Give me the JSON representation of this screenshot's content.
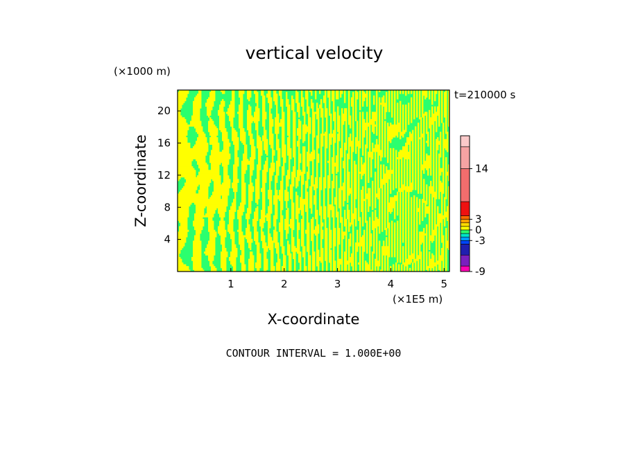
{
  "chart_data": {
    "type": "heatmap",
    "title": "vertical velocity",
    "xlabel": "X-coordinate",
    "ylabel": "Z-coordinate",
    "x_unit": "(×1E5 m)",
    "y_unit": "(×1000 m)",
    "time_label": "t=210000 s",
    "footer": "CONTOUR INTERVAL = 1.000E+00",
    "xlim": [
      0,
      5.1
    ],
    "ylim": [
      0,
      22.6
    ],
    "x_ticks": [
      "1",
      "2",
      "3",
      "4",
      "5"
    ],
    "y_ticks": [
      "4",
      "8",
      "12",
      "16",
      "20"
    ],
    "x_tick_values": [
      1,
      2,
      3,
      4,
      5
    ],
    "y_tick_values": [
      4,
      8,
      12,
      16,
      20
    ],
    "grid": false,
    "field_description": "mostly yellow (0 to 1) and green (-1 to 0) vertical streaks",
    "colorbar": {
      "levels": [
        {
          "lo": -9,
          "hi": -8,
          "color": "#ff00b4"
        },
        {
          "lo": -8,
          "hi": -6,
          "color": "#7a1fbf"
        },
        {
          "lo": -6,
          "hi": -4,
          "color": "#1f1fb0"
        },
        {
          "lo": -4,
          "hi": -3,
          "color": "#0046ff"
        },
        {
          "lo": -3,
          "hi": -2,
          "color": "#00a0ff"
        },
        {
          "lo": -2,
          "hi": -1,
          "color": "#00e6c8"
        },
        {
          "lo": -1,
          "hi": 0,
          "color": "#2bff6e"
        },
        {
          "lo": 0,
          "hi": 1,
          "color": "#ffff00"
        },
        {
          "lo": 1,
          "hi": 2,
          "color": "#ffdc00"
        },
        {
          "lo": 2,
          "hi": 3,
          "color": "#ffa000"
        },
        {
          "lo": 3,
          "hi": 4,
          "color": "#ff6a00"
        },
        {
          "lo": 4,
          "hi": 8,
          "color": "#ee1111"
        },
        {
          "lo": 8,
          "hi": 14,
          "color": "#f26d6d"
        },
        {
          "lo": 14,
          "hi": 18,
          "color": "#f6a3a3"
        },
        {
          "lo": 18,
          "hi": 20,
          "color": "#fbcaca"
        }
      ],
      "labels": [
        "14",
        "3",
        "0",
        "-3",
        "-9"
      ],
      "label_values": [
        14,
        3,
        0,
        -3,
        -9
      ]
    },
    "colors": {
      "positive": "#ffff00",
      "negative": "#2bff6e"
    }
  }
}
